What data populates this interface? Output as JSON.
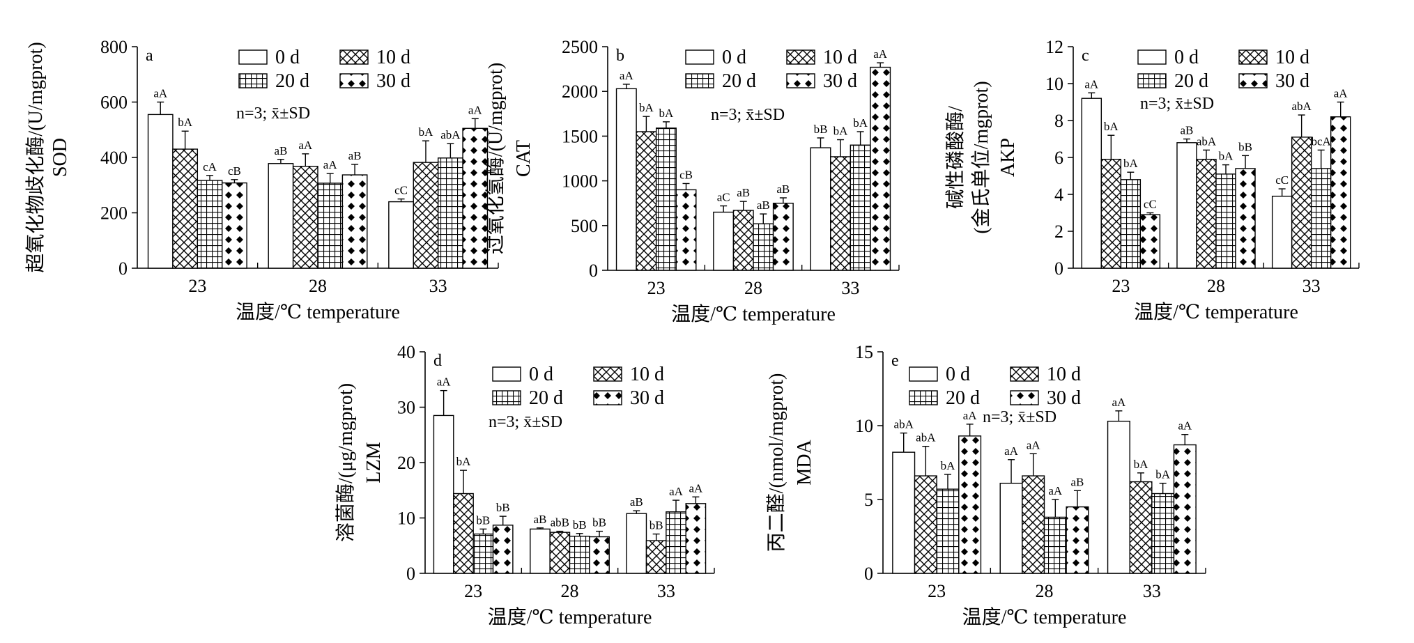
{
  "figure": {
    "xlabel": "温度/℃ temperature",
    "categories": [
      "23",
      "28",
      "33"
    ],
    "legend": [
      "0 d",
      "10 d",
      "20 d",
      "30 d"
    ],
    "note": "n=3; x̄±SD"
  },
  "chart_data": [
    {
      "type": "bar",
      "panel": "a",
      "ylabel": [
        "超氧化物歧化酶/(U/mgprot)",
        "SOD"
      ],
      "ylim": [
        0,
        800
      ],
      "yticks": [
        0,
        200,
        400,
        600,
        800
      ],
      "categories": [
        "23",
        "28",
        "33"
      ],
      "series": [
        {
          "name": "0 d",
          "values": [
            555,
            378,
            240
          ],
          "errors": [
            45,
            15,
            10
          ],
          "labels": [
            "aA",
            "aB",
            "cC"
          ]
        },
        {
          "name": "10 d",
          "values": [
            430,
            368,
            382
          ],
          "errors": [
            65,
            45,
            78
          ],
          "labels": [
            "bA",
            "aA",
            "bA"
          ]
        },
        {
          "name": "20 d",
          "values": [
            317,
            307,
            398
          ],
          "errors": [
            18,
            35,
            52
          ],
          "labels": [
            "cA",
            "aA",
            "abA"
          ]
        },
        {
          "name": "30 d",
          "values": [
            308,
            337,
            505
          ],
          "errors": [
            12,
            38,
            35
          ],
          "labels": [
            "cB",
            "aB",
            "aA"
          ]
        }
      ]
    },
    {
      "type": "bar",
      "panel": "b",
      "ylabel": [
        "过氧化氢酶/(U/mgprot)",
        "CAT"
      ],
      "ylim": [
        0,
        2500
      ],
      "yticks": [
        0,
        500,
        1000,
        1500,
        2000,
        2500
      ],
      "categories": [
        "23",
        "28",
        "33"
      ],
      "series": [
        {
          "name": "0 d",
          "values": [
            2030,
            650,
            1370
          ],
          "errors": [
            50,
            70,
            110
          ],
          "labels": [
            "aA",
            "aC",
            "bB"
          ]
        },
        {
          "name": "10 d",
          "values": [
            1550,
            670,
            1270
          ],
          "errors": [
            170,
            100,
            190
          ],
          "labels": [
            "bA",
            "aB",
            "bA"
          ]
        },
        {
          "name": "20 d",
          "values": [
            1590,
            520,
            1400
          ],
          "errors": [
            70,
            110,
            150
          ],
          "labels": [
            "bA",
            "aB",
            "bA"
          ]
        },
        {
          "name": "30 d",
          "values": [
            900,
            750,
            2270
          ],
          "errors": [
            70,
            60,
            50
          ],
          "labels": [
            "cB",
            "aB",
            "aA"
          ]
        }
      ]
    },
    {
      "type": "bar",
      "panel": "c",
      "ylabel": [
        "碱性磷酸酶/",
        "(金氏单位/mgprot)",
        "AKP"
      ],
      "ylim": [
        0,
        12
      ],
      "yticks": [
        0,
        2,
        4,
        6,
        8,
        10,
        12
      ],
      "categories": [
        "23",
        "28",
        "33"
      ],
      "series": [
        {
          "name": "0 d",
          "values": [
            9.2,
            6.8,
            3.9
          ],
          "errors": [
            0.3,
            0.2,
            0.4
          ],
          "labels": [
            "aA",
            "aB",
            "cC"
          ]
        },
        {
          "name": "10 d",
          "values": [
            5.9,
            5.9,
            7.1
          ],
          "errors": [
            1.3,
            0.5,
            1.2
          ],
          "labels": [
            "bA",
            "abA",
            "abA"
          ]
        },
        {
          "name": "20 d",
          "values": [
            4.8,
            5.1,
            5.4
          ],
          "errors": [
            0.4,
            0.5,
            1.0
          ],
          "labels": [
            "bA",
            "bA",
            "bcA"
          ]
        },
        {
          "name": "30 d",
          "values": [
            2.9,
            5.4,
            8.2
          ],
          "errors": [
            0.1,
            0.7,
            0.8
          ],
          "labels": [
            "cC",
            "bB",
            "aA"
          ]
        }
      ]
    },
    {
      "type": "bar",
      "panel": "d",
      "ylabel": [
        "溶菌酶/(μg/mgprot)",
        "LZM"
      ],
      "ylim": [
        0,
        40
      ],
      "yticks": [
        0,
        10,
        20,
        30,
        40
      ],
      "categories": [
        "23",
        "28",
        "33"
      ],
      "series": [
        {
          "name": "0 d",
          "values": [
            28.5,
            8.0,
            10.8
          ],
          "errors": [
            4.5,
            0.2,
            0.5
          ],
          "labels": [
            "aA",
            "aB",
            "aB"
          ]
        },
        {
          "name": "10 d",
          "values": [
            14.4,
            7.4,
            5.9
          ],
          "errors": [
            4.2,
            0.2,
            1.2
          ],
          "labels": [
            "bA",
            "abB",
            "bB"
          ]
        },
        {
          "name": "20 d",
          "values": [
            7.1,
            6.7,
            11.1
          ],
          "errors": [
            0.9,
            0.5,
            2.1
          ],
          "labels": [
            "bB",
            "bB",
            "aA"
          ]
        },
        {
          "name": "30 d",
          "values": [
            8.7,
            6.6,
            12.6
          ],
          "errors": [
            1.6,
            1.0,
            1.2
          ],
          "labels": [
            "bB",
            "bB",
            "aA"
          ]
        }
      ]
    },
    {
      "type": "bar",
      "panel": "e",
      "ylabel": [
        "丙二醛/(nmol/mgprot)",
        "MDA"
      ],
      "ylim": [
        0,
        15
      ],
      "yticks": [
        0,
        5,
        10,
        15
      ],
      "categories": [
        "23",
        "28",
        "33"
      ],
      "series": [
        {
          "name": "0 d",
          "values": [
            8.2,
            6.1,
            10.3
          ],
          "errors": [
            1.3,
            1.6,
            0.7
          ],
          "labels": [
            "abA",
            "aA",
            "aA"
          ]
        },
        {
          "name": "10 d",
          "values": [
            6.6,
            6.6,
            6.2
          ],
          "errors": [
            2.0,
            1.5,
            0.6
          ],
          "labels": [
            "abA",
            "aA",
            "bA"
          ]
        },
        {
          "name": "20 d",
          "values": [
            5.7,
            3.8,
            5.4
          ],
          "errors": [
            1.0,
            1.2,
            0.7
          ],
          "labels": [
            "bA",
            "aA",
            "bA"
          ]
        },
        {
          "name": "30 d",
          "values": [
            9.3,
            4.5,
            8.7
          ],
          "errors": [
            0.8,
            1.1,
            0.7
          ],
          "labels": [
            "aA",
            "aB",
            "aA"
          ]
        }
      ]
    }
  ]
}
